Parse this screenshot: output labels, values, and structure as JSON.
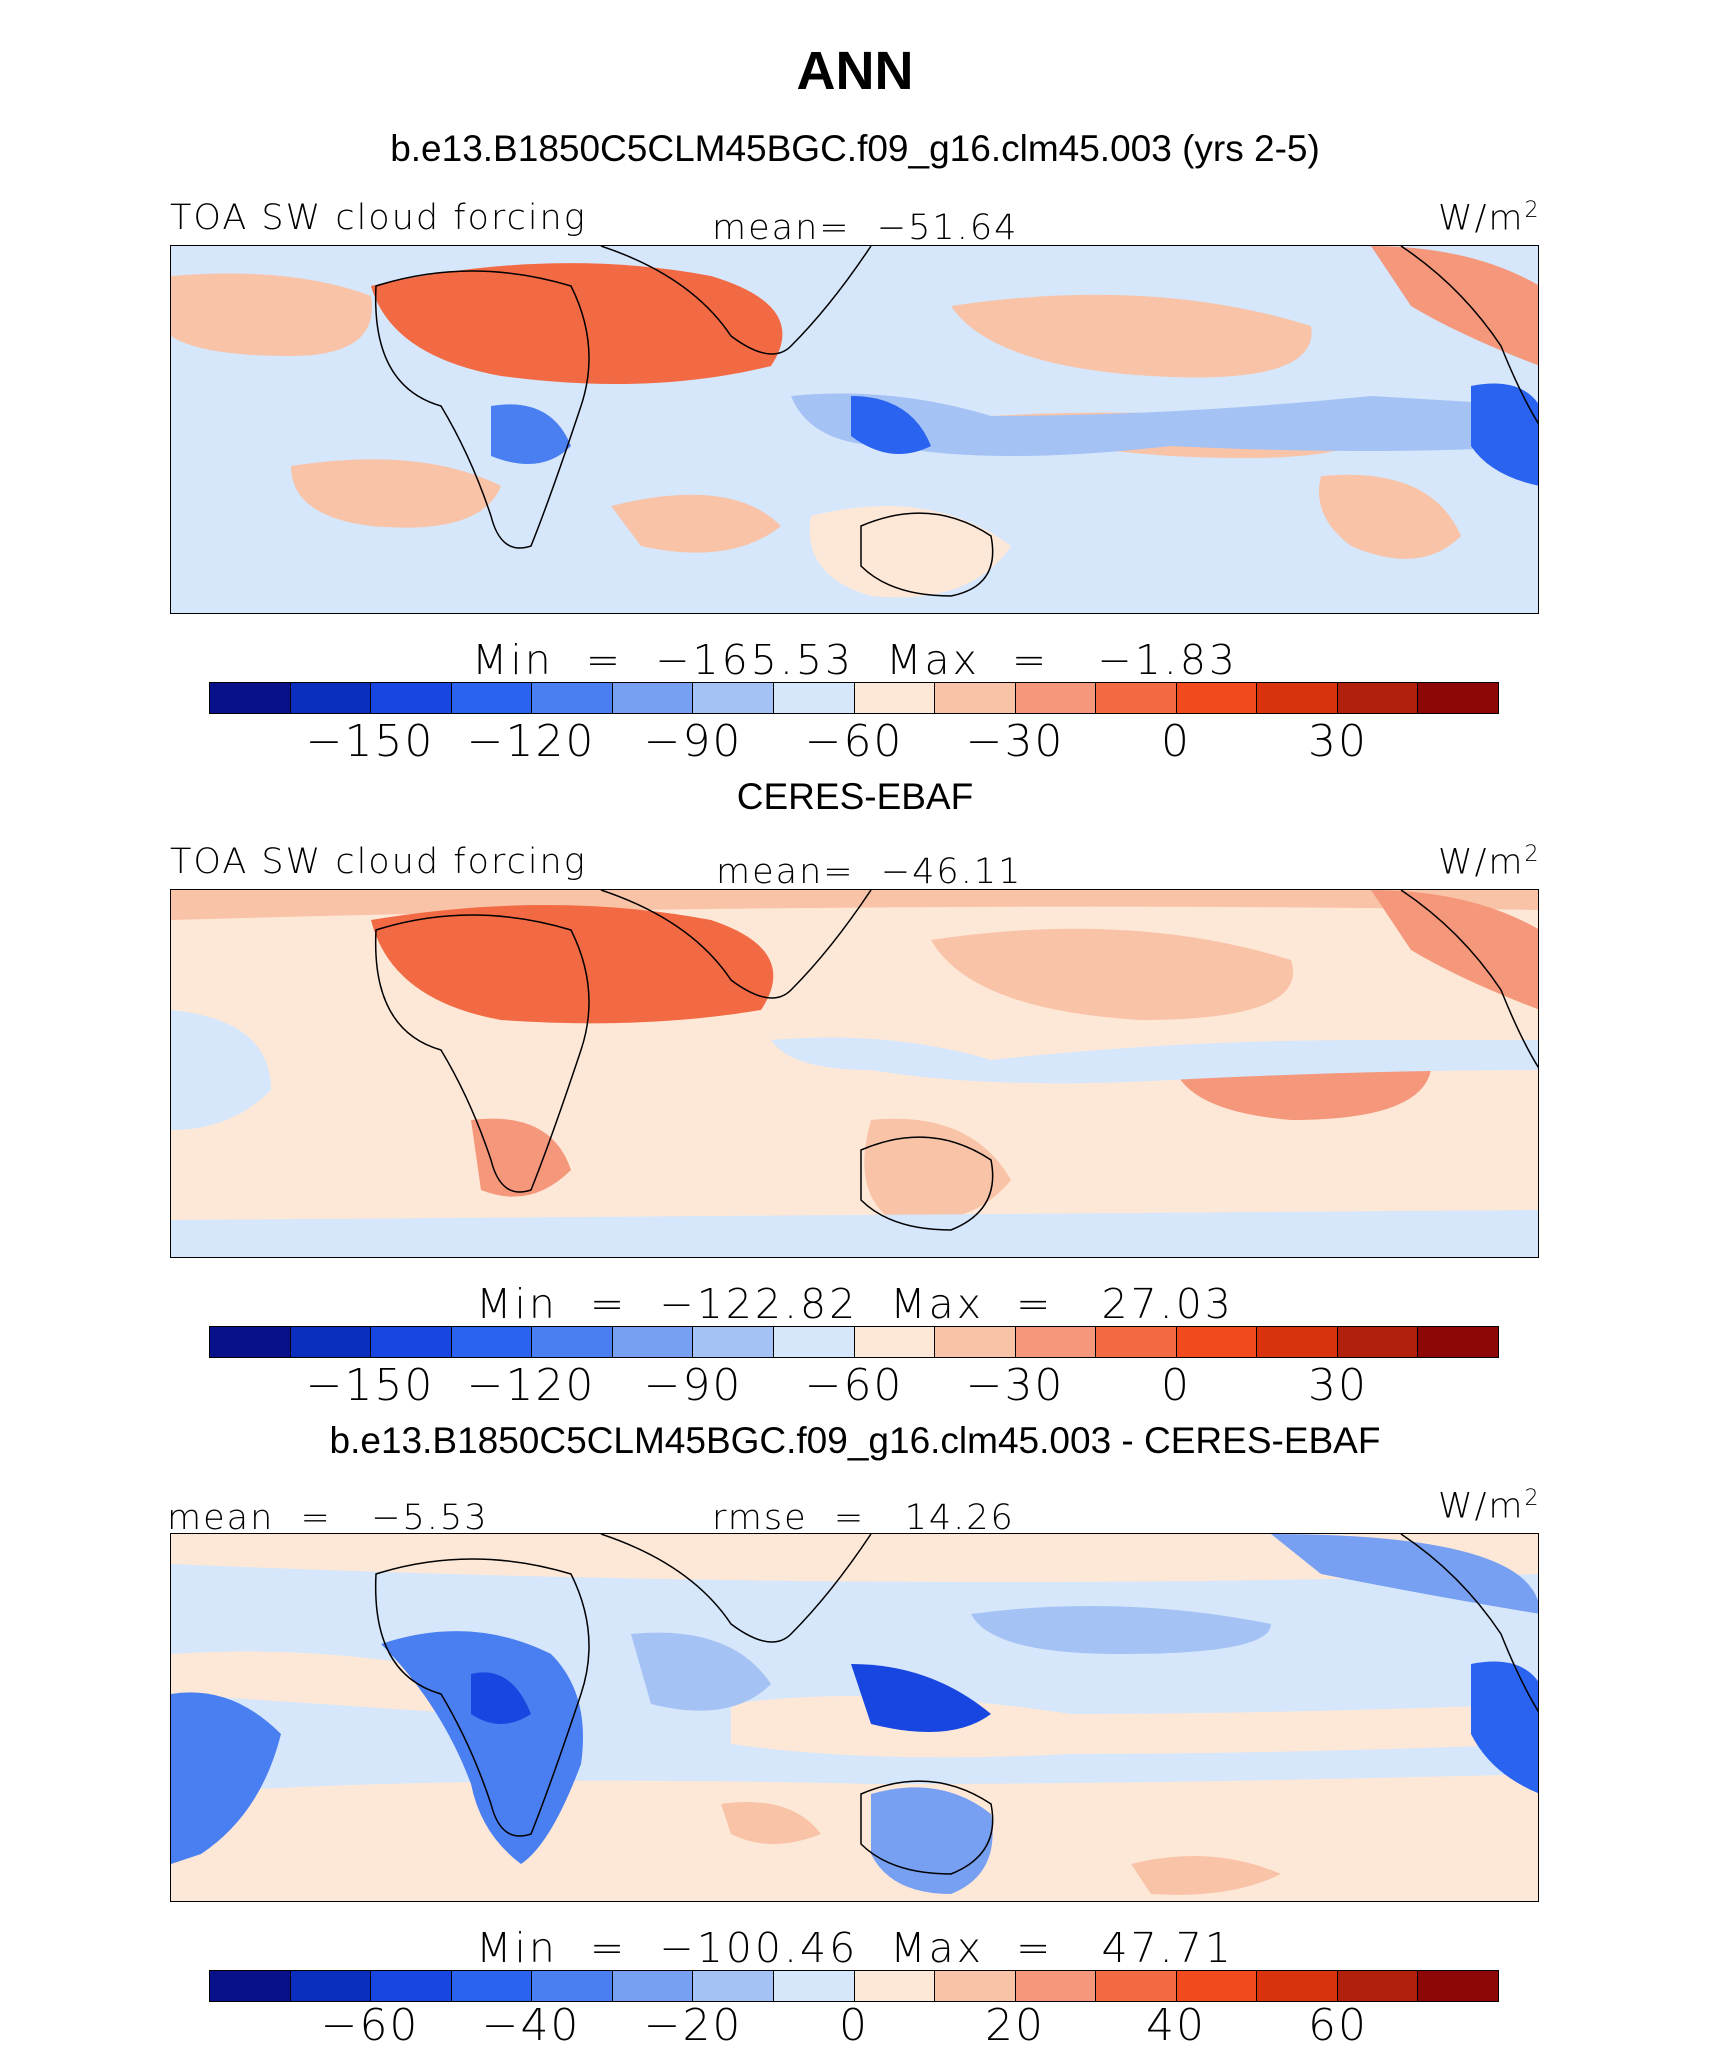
{
  "title": "ANN",
  "case_title": "b.e13.B1850C5CLM45BGC.f09_g16.clm45.003 (yrs 2-5)",
  "obs_title": "CERES-EBAF",
  "diff_title": "b.e13.B1850C5CLM45BGC.f09_g16.clm45.003 - CERES-EBAF",
  "colors": {
    "palette": [
      "#08108a",
      "#0a2ebd",
      "#1747e0",
      "#2a63f0",
      "#4a7ff2",
      "#779ff2",
      "#a4c2f4",
      "#d6e6fb",
      "#fde8d8",
      "#f9c3a7",
      "#f5977a",
      "#f26a43",
      "#f04a1d",
      "#d9330e",
      "#b0200a",
      "#8c0706"
    ]
  },
  "panels": [
    {
      "left_label": "TOA SW cloud forcing",
      "center_label": "mean=  -51.64",
      "units": "W/m",
      "units_sup": "2",
      "minmax": "Min  =  -165.53  Max  =   -1.83",
      "cbar_labels": [
        "-150",
        "-120",
        "-90",
        "-60",
        "-30",
        "0",
        "30"
      ]
    },
    {
      "left_label": "TOA SW cloud forcing",
      "center_label": "mean=  -46.11",
      "units": "W/m",
      "units_sup": "2",
      "minmax": "Min  =  -122.82  Max  =   27.03",
      "cbar_labels": [
        "-150",
        "-120",
        "-90",
        "-60",
        "-30",
        "0",
        "30"
      ]
    },
    {
      "left_label": "mean  =   -5.53",
      "center_label": "rmse  =   14.26",
      "units": "W/m",
      "units_sup": "2",
      "minmax": "Min  =  -100.46  Max  =   47.71",
      "cbar_labels": [
        "-60",
        "-40",
        "-20",
        "0",
        "20",
        "40",
        "60"
      ]
    }
  ]
}
